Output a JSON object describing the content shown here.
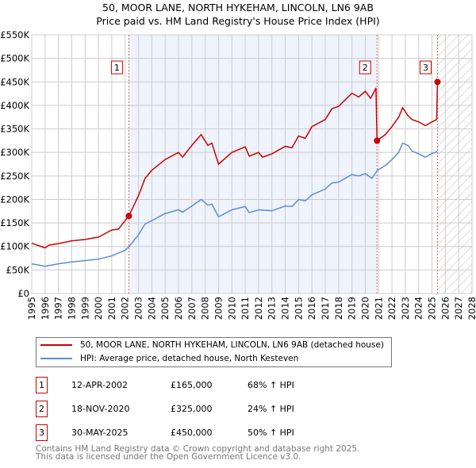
{
  "chart_data": {
    "type": "line",
    "title": "50, MOOR LANE, NORTH HYKEHAM, LINCOLN, LN6 9AB",
    "subtitle": "Price paid vs. HM Land Registry's House Price Index (HPI)",
    "xlim": [
      1995,
      2028
    ],
    "ylim": [
      0,
      550000
    ],
    "yticks": [
      0,
      50000,
      100000,
      150000,
      200000,
      250000,
      300000,
      350000,
      400000,
      450000,
      500000,
      550000
    ],
    "ytick_labels": [
      "£0",
      "£50K",
      "£100K",
      "£150K",
      "£200K",
      "£250K",
      "£300K",
      "£350K",
      "£400K",
      "£450K",
      "£500K",
      "£550K"
    ],
    "xtick_labels": [
      "1995",
      "1996",
      "1997",
      "1998",
      "1999",
      "2000",
      "2001",
      "2002",
      "2003",
      "2004",
      "2005",
      "2006",
      "2007",
      "2008",
      "2009",
      "2010",
      "2011",
      "2012",
      "2013",
      "2014",
      "2015",
      "2016",
      "2017",
      "2018",
      "2019",
      "2020",
      "2021",
      "2022",
      "2023",
      "2024",
      "2025",
      "2026",
      "2027",
      "2028"
    ],
    "grid": true,
    "series": [
      {
        "name": "50, MOOR LANE, NORTH HYKEHAM, LINCOLN, LN6 9AB (detached house)",
        "color": "#cc0000",
        "x": [
          1995,
          1996,
          1996.3,
          1997,
          1998,
          1999,
          2000,
          2001,
          2001.5,
          2002,
          2002.28,
          2003,
          2003.5,
          2004,
          2005,
          2006,
          2006.3,
          2007,
          2007.7,
          2008.2,
          2008.5,
          2009,
          2010,
          2011,
          2011.3,
          2012,
          2012.3,
          2013,
          2014,
          2014.5,
          2015,
          2015.5,
          2016,
          2017,
          2017.5,
          2018,
          2019,
          2019.5,
          2020,
          2020.4,
          2020.8,
          2020.88,
          2021.5,
          2022,
          2022.5,
          2022.8,
          2023.2,
          2023.5,
          2024,
          2024.5,
          2025,
          2025.35,
          2025.41
        ],
        "values": [
          107,
          97,
          103,
          106,
          112,
          115,
          120,
          135,
          137,
          155,
          165,
          208,
          245,
          262,
          285,
          300,
          290,
          315,
          338,
          315,
          320,
          275,
          300,
          312,
          292,
          300,
          290,
          297,
          313,
          310,
          335,
          330,
          355,
          370,
          393,
          398,
          426,
          418,
          430,
          415,
          437,
          325,
          338,
          355,
          375,
          395,
          378,
          370,
          365,
          357,
          365,
          370,
          450
        ]
      },
      {
        "name": "HPI: Average price, detached house, North Kesteven",
        "color": "#5b8fd4",
        "x": [
          1995,
          1996,
          1997,
          1998,
          1999,
          2000,
          2001,
          2002,
          2002.3,
          2003,
          2003.5,
          2004,
          2005,
          2006,
          2006.3,
          2007,
          2007.7,
          2008.2,
          2008.5,
          2009,
          2010,
          2011,
          2011.3,
          2012,
          2013,
          2014,
          2014.5,
          2015,
          2015.5,
          2016,
          2017,
          2017.5,
          2018,
          2019,
          2019.5,
          2020,
          2020.5,
          2020.9,
          2021.5,
          2022,
          2022.5,
          2022.8,
          2023.2,
          2023.5,
          2024,
          2024.5,
          2025,
          2025.4
        ],
        "values": [
          63,
          58,
          63,
          67,
          70,
          73,
          80,
          92,
          100,
          125,
          148,
          155,
          170,
          178,
          173,
          186,
          200,
          188,
          190,
          163,
          178,
          185,
          172,
          178,
          176,
          186,
          185,
          200,
          197,
          210,
          222,
          235,
          237,
          253,
          250,
          255,
          245,
          262,
          272,
          285,
          300,
          320,
          315,
          303,
          297,
          290,
          298,
          302
        ]
      }
    ],
    "value_unit": "thousands GBP",
    "sales": [
      {
        "label": "1",
        "x": 2002.28,
        "price": 165,
        "date": "12-APR-2002",
        "price_text": "£165,000",
        "hpi_text": "68% ↑ HPI"
      },
      {
        "label": "2",
        "x": 2020.88,
        "price": 325,
        "date": "18-NOV-2020",
        "price_text": "£325,000",
        "hpi_text": "24% ↑ HPI"
      },
      {
        "label": "3",
        "x": 2025.41,
        "price": 450,
        "date": "30-MAY-2025",
        "price_text": "£450,000",
        "hpi_text": "50% ↑ HPI"
      }
    ],
    "shaded_range": [
      2002.28,
      2020.88
    ],
    "forecast_hatch_from": 2025.41
  },
  "footer": {
    "line1": "Contains HM Land Registry data © Crown copyright and database right 2025.",
    "line2": "This data is licensed under the Open Government Licence v3.0."
  }
}
